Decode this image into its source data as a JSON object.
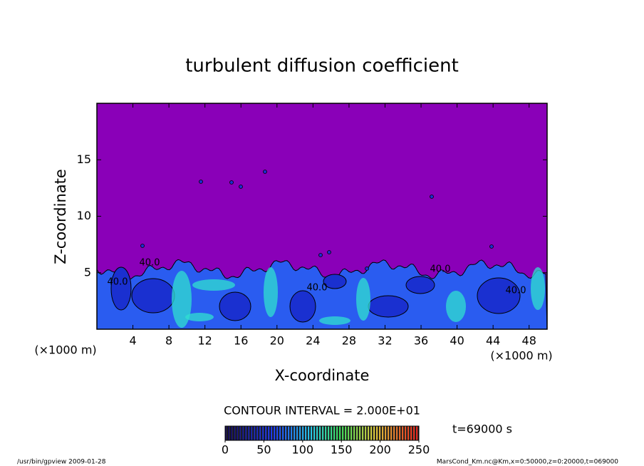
{
  "chart_data": {
    "type": "contour",
    "title": "turbulent diffusion coefficient",
    "xlabel": "X-coordinate",
    "ylabel": "Z-coordinate",
    "xunit": "(×1000 m)",
    "yunit": "(×1000 m)",
    "xlim": [
      0,
      50
    ],
    "xticks": [
      4,
      8,
      12,
      16,
      20,
      24,
      28,
      32,
      36,
      40,
      44,
      48
    ],
    "ylim": [
      0,
      20
    ],
    "yticks": [
      5,
      10,
      15
    ],
    "contour_interval": "CONTOUR INTERVAL = 2.000E+01",
    "time_label": "t=69000 s",
    "contour_labels": [
      "40.0",
      "40.0",
      "40.0",
      "40.0",
      "40.0"
    ],
    "colorbar": {
      "lim": [
        0,
        250
      ],
      "ticks": [
        0,
        50,
        100,
        150,
        200,
        250
      ]
    },
    "footer_left": "/usr/bin/gpview   2009-01-28",
    "footer_right": "MarsCond_Km.nc@Km,x=0:50000,z=0:20000,t=069000"
  }
}
